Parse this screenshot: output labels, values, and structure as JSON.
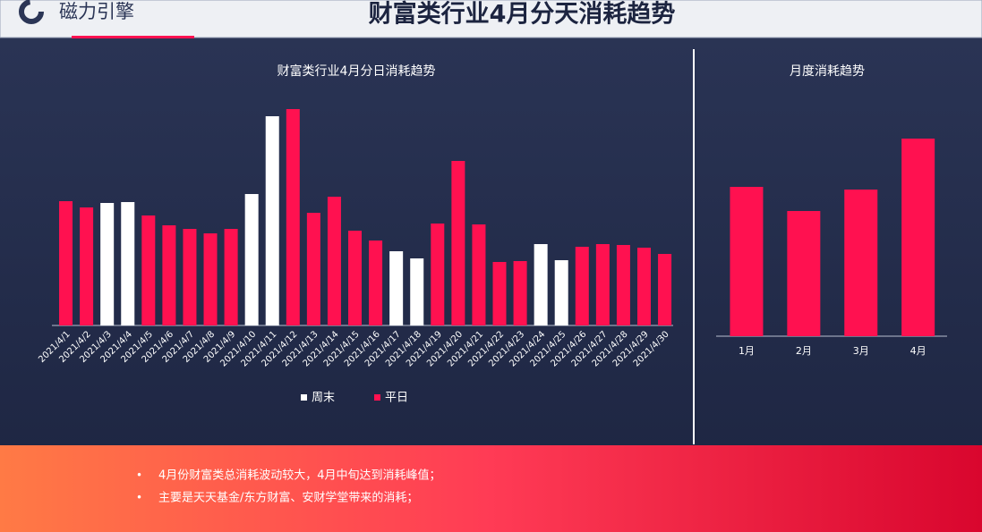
{
  "header": {
    "logo": "磁力引擎",
    "title": "财富类行业4月分天消耗趋势"
  },
  "chart_data": [
    {
      "type": "bar",
      "title": "财富类行业4月分日消耗趋势",
      "categories": [
        "2021/4/1",
        "2021/4/2",
        "2021/4/3",
        "2021/4/4",
        "2021/4/5",
        "2021/4/6",
        "2021/4/7",
        "2021/4/8",
        "2021/4/9",
        "2021/4/10",
        "2021/4/11",
        "2021/4/12",
        "2021/4/13",
        "2021/4/14",
        "2021/4/15",
        "2021/4/16",
        "2021/4/17",
        "2021/4/18",
        "2021/4/19",
        "2021/4/20",
        "2021/4/21",
        "2021/4/22",
        "2021/4/23",
        "2021/4/24",
        "2021/4/25",
        "2021/4/26",
        "2021/4/27",
        "2021/4/28",
        "2021/4/29",
        "2021/4/30"
      ],
      "series": [
        {
          "name": "周末",
          "color": "#ffffff",
          "values": [
            null,
            null,
            137,
            138,
            null,
            null,
            null,
            null,
            null,
            147,
            234,
            null,
            null,
            null,
            null,
            null,
            83,
            75,
            null,
            null,
            null,
            null,
            null,
            91,
            73,
            null,
            null,
            null,
            null,
            null
          ]
        },
        {
          "name": "平日",
          "color": "#ff1150",
          "values": [
            139,
            132,
            null,
            null,
            123,
            112,
            108,
            103,
            108,
            null,
            null,
            242,
            126,
            144,
            106,
            95,
            null,
            null,
            114,
            184,
            113,
            71,
            72,
            null,
            null,
            88,
            91,
            90,
            87,
            80
          ]
        }
      ]
    },
    {
      "type": "bar",
      "title": "月度消耗趋势",
      "categories": [
        "1月",
        "2月",
        "3月",
        "4月"
      ],
      "values": [
        167,
        140,
        164,
        221
      ],
      "color": "#ff1150"
    }
  ],
  "notes": [
    "4月份财富类总消耗波动较大，4月中旬达到消耗峰值；",
    "主要是天天基金/东方财富、安财学堂带来的消耗；"
  ]
}
